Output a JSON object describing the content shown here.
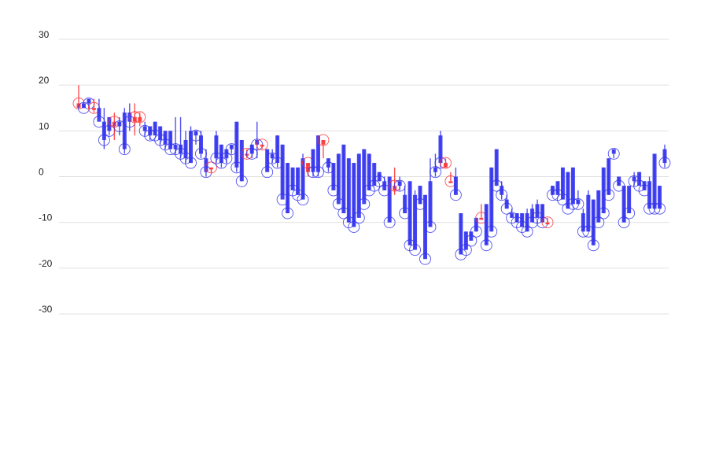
{
  "chart_data": {
    "type": "candlestick",
    "title": "",
    "xlabel": "",
    "ylabel": "",
    "ylim": [
      -30,
      30
    ],
    "yticks": [
      30,
      20,
      10,
      0,
      -10,
      -20,
      -30
    ],
    "grid": true,
    "legend": "none",
    "colors": {
      "up": "#ff3333",
      "down": "#3333ee"
    },
    "markers": "hollow circle at the close of each bar",
    "series": [
      {
        "values": [
          [
            15,
            20,
            15,
            16
          ],
          [
            16,
            16,
            15,
            15
          ],
          [
            17,
            17,
            15,
            16
          ],
          [
            15,
            17,
            14,
            15
          ],
          [
            15,
            17,
            13,
            12
          ],
          [
            12,
            15,
            6,
            8
          ],
          [
            13,
            13,
            9,
            10
          ],
          [
            11,
            14,
            8,
            12
          ],
          [
            12,
            13,
            9,
            11
          ],
          [
            14,
            15,
            5,
            6
          ],
          [
            14,
            16,
            10,
            12
          ],
          [
            12,
            16,
            9,
            13
          ],
          [
            12,
            14,
            11,
            13
          ],
          [
            11,
            12,
            9,
            10
          ],
          [
            11,
            11,
            8,
            9
          ],
          [
            12,
            12,
            9,
            9
          ],
          [
            11,
            11,
            7,
            8
          ],
          [
            10,
            10,
            6,
            7
          ],
          [
            10,
            10,
            6,
            6
          ],
          [
            7,
            13,
            5,
            6
          ],
          [
            7,
            13,
            4,
            5
          ],
          [
            8,
            10,
            3,
            4
          ],
          [
            10,
            11,
            3,
            3
          ],
          [
            10,
            10,
            7,
            9
          ],
          [
            9,
            10,
            4,
            5
          ],
          [
            4,
            6,
            0,
            1
          ],
          [
            2,
            2,
            1,
            2
          ],
          [
            9,
            10,
            3,
            4
          ],
          [
            7,
            7,
            2,
            3
          ],
          [
            6,
            6,
            3,
            4
          ],
          [
            7,
            7,
            5,
            6
          ],
          [
            12,
            12,
            1,
            2
          ],
          [
            8,
            8,
            -1,
            -1
          ],
          [
            5,
            6,
            4,
            5
          ],
          [
            7,
            7,
            4,
            5
          ],
          [
            8,
            12,
            4,
            7
          ],
          [
            7,
            7,
            6,
            7
          ],
          [
            6,
            6,
            1,
            1
          ],
          [
            5,
            6,
            3,
            4
          ],
          [
            9,
            9,
            2,
            3
          ],
          [
            7,
            7,
            -4,
            -5
          ],
          [
            3,
            3,
            -8,
            -8
          ],
          [
            2,
            2,
            -3,
            -3
          ],
          [
            2,
            2,
            -4,
            -4
          ],
          [
            4,
            5,
            -5,
            -5
          ],
          [
            1,
            3,
            0,
            3
          ],
          [
            6,
            6,
            0,
            1
          ],
          [
            9,
            9,
            0,
            1
          ],
          [
            7,
            8,
            4,
            8
          ],
          [
            4,
            4,
            1,
            2
          ],
          [
            3,
            3,
            -3,
            -3
          ],
          [
            5,
            5,
            -4,
            -6
          ],
          [
            7,
            7,
            -8,
            -8
          ],
          [
            4,
            4,
            -10,
            -10
          ],
          [
            3,
            3,
            -11,
            -11
          ],
          [
            5,
            5,
            -8,
            -9
          ],
          [
            6,
            6,
            -5,
            -6
          ],
          [
            5,
            5,
            -3,
            -3
          ],
          [
            3,
            3,
            -2,
            -2
          ],
          [
            1,
            1,
            -1,
            -1
          ],
          [
            -1,
            0,
            -3,
            -3
          ],
          [
            0,
            0,
            -10,
            -10
          ],
          [
            -3,
            2,
            -4,
            -2
          ],
          [
            -1,
            0,
            -3,
            -2
          ],
          [
            -4,
            -2,
            -8,
            -8
          ],
          [
            -1,
            -1,
            -15,
            -15
          ],
          [
            -4,
            -3,
            -16,
            -16
          ],
          [
            -2,
            -2,
            -6,
            -6
          ],
          [
            -4,
            -4,
            -18,
            -18
          ],
          [
            -1,
            4,
            -11,
            -11
          ],
          [
            2,
            5,
            0,
            1
          ],
          [
            9,
            10,
            2,
            3
          ],
          [
            2,
            4,
            2,
            3
          ],
          [
            -1,
            1,
            -1,
            -1
          ],
          [
            0,
            2,
            -4,
            -4
          ],
          [
            -8,
            -8,
            -17,
            -17
          ],
          [
            -12,
            -12,
            -16,
            -16
          ],
          [
            -12,
            -12,
            -14,
            -14
          ],
          [
            -9,
            -9,
            -12,
            -12
          ],
          [
            -9,
            -6,
            -9,
            -9
          ],
          [
            -6,
            -6,
            -15,
            -15
          ],
          [
            2,
            2,
            -12,
            -12
          ],
          [
            6,
            6,
            -2,
            -2
          ],
          [
            -2,
            -1,
            -5,
            -4
          ],
          [
            -5,
            -4,
            -7,
            -7
          ],
          [
            -8,
            -7,
            -9,
            -9
          ],
          [
            -8,
            -8,
            -10,
            -10
          ],
          [
            -8,
            -8,
            -11,
            -11
          ],
          [
            -8,
            -7,
            -12,
            -12
          ],
          [
            -7,
            -6,
            -10,
            -10
          ],
          [
            -6,
            -5,
            -9,
            -9
          ],
          [
            -6,
            -6,
            -10,
            -10
          ],
          [
            -10,
            -9,
            -10,
            -10
          ],
          [
            -2,
            -2,
            -4,
            -4
          ],
          [
            -1,
            -1,
            -4,
            -4
          ],
          [
            2,
            2,
            -5,
            -5
          ],
          [
            1,
            1,
            -7,
            -7
          ],
          [
            2,
            2,
            -6,
            -6
          ],
          [
            -5,
            -3,
            -6,
            -6
          ],
          [
            -8,
            -7,
            -12,
            -12
          ],
          [
            -4,
            -3,
            -12,
            -12
          ],
          [
            -5,
            -5,
            -15,
            -15
          ],
          [
            -3,
            -3,
            -10,
            -10
          ],
          [
            2,
            2,
            -8,
            -8
          ],
          [
            4,
            4,
            -4,
            -4
          ],
          [
            6,
            6,
            4,
            5
          ],
          [
            0,
            0,
            -2,
            -2
          ],
          [
            -2,
            -2,
            -10,
            -10
          ],
          [
            -2,
            -2,
            -8,
            -8
          ],
          [
            0,
            1,
            -2,
            -1
          ],
          [
            1,
            1,
            -2,
            -2
          ],
          [
            -1,
            -1,
            -3,
            -3
          ],
          [
            -1,
            0,
            -7,
            -7
          ],
          [
            5,
            5,
            -7,
            -7
          ],
          [
            -2,
            -2,
            -7,
            -7
          ],
          [
            6,
            7,
            2,
            3
          ]
        ]
      }
    ]
  }
}
